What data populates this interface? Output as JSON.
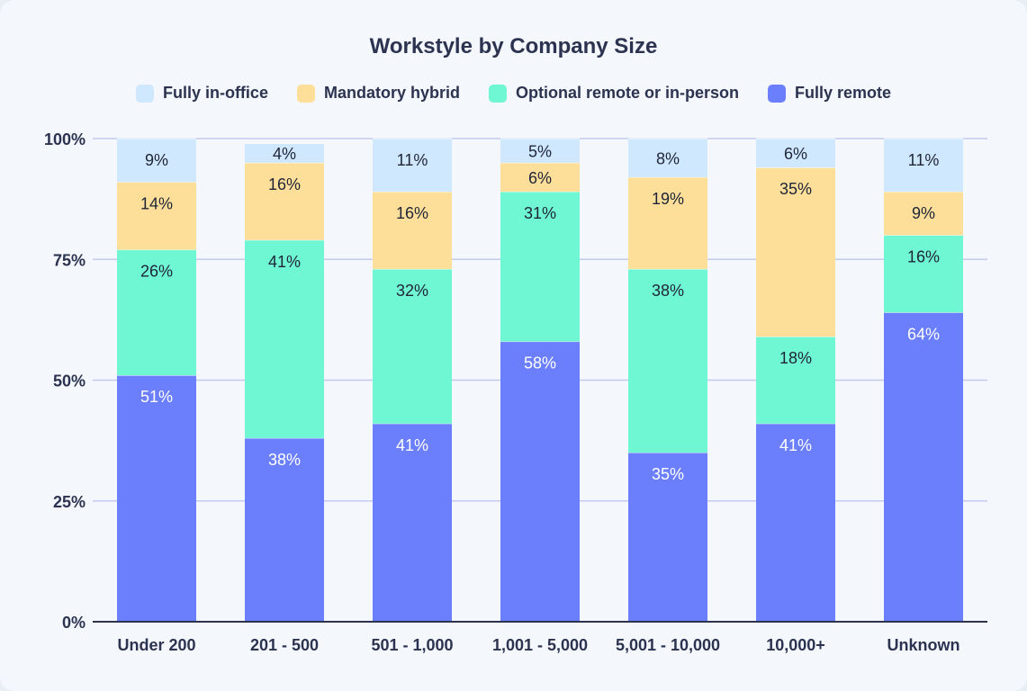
{
  "chart_data": {
    "type": "bar",
    "stacked": true,
    "title": "Workstyle by Company Size",
    "categories": [
      "Under 200",
      "201 - 500",
      "501 - 1,000",
      "1,001 - 5,000",
      "5,001 - 10,000",
      "10,000+",
      "Unknown"
    ],
    "series": [
      {
        "name": "Fully remote",
        "color": "#6b7ffc",
        "label_color": "#ffffff",
        "values": [
          51,
          38,
          41,
          58,
          35,
          41,
          64
        ]
      },
      {
        "name": "Optional remote or in-person",
        "color": "#6ff7d4",
        "label_color": "#1f2437",
        "values": [
          26,
          41,
          32,
          31,
          38,
          18,
          16
        ]
      },
      {
        "name": "Mandatory hybrid",
        "color": "#fddf99",
        "label_color": "#1f2437",
        "values": [
          14,
          16,
          16,
          6,
          19,
          35,
          9
        ]
      },
      {
        "name": "Fully in-office",
        "color": "#d0e8fd",
        "label_color": "#1f2437",
        "values": [
          9,
          4,
          11,
          5,
          8,
          6,
          11
        ]
      }
    ],
    "legend_order": [
      "Fully in-office",
      "Mandatory hybrid",
      "Optional remote or in-person",
      "Fully remote"
    ],
    "legend_position": "top",
    "yticks": [
      "0%",
      "25%",
      "50%",
      "75%",
      "100%"
    ],
    "ylim": [
      0,
      100
    ],
    "grid": true,
    "xlabel": "",
    "ylabel": ""
  }
}
